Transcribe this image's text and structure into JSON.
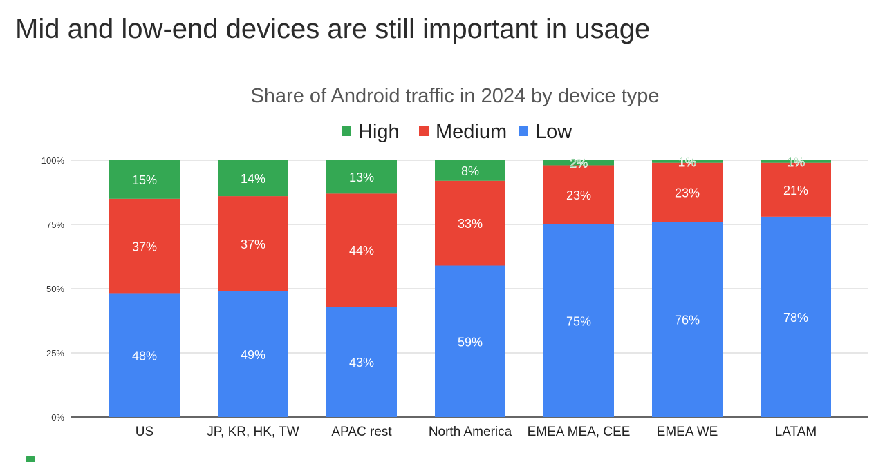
{
  "headline": "Mid and low-end devices are still important in usage",
  "colors": {
    "high": "#34a853",
    "medium": "#ea4335",
    "low": "#4285f4"
  },
  "chart_data": {
    "type": "bar",
    "stacked": true,
    "title": "Share of Android traffic in 2024 by device type",
    "legend_position": "top",
    "grid": true,
    "ylim": [
      0,
      100
    ],
    "yticks": [
      "0%",
      "25%",
      "50%",
      "75%",
      "100%"
    ],
    "categories": [
      "US",
      "JP, KR, HK, TW",
      "APAC rest",
      "North America",
      "EMEA MEA, CEE",
      "EMEA WE",
      "LATAM"
    ],
    "series": [
      {
        "name": "Low",
        "values": [
          48,
          49,
          43,
          59,
          75,
          76,
          78
        ],
        "color": "#4285f4"
      },
      {
        "name": "Medium",
        "values": [
          37,
          37,
          44,
          33,
          23,
          23,
          21
        ],
        "color": "#ea4335"
      },
      {
        "name": "High",
        "values": [
          15,
          14,
          13,
          8,
          2,
          1,
          1
        ],
        "color": "#34a853"
      }
    ],
    "legend_order": [
      "High",
      "Medium",
      "Low"
    ]
  }
}
